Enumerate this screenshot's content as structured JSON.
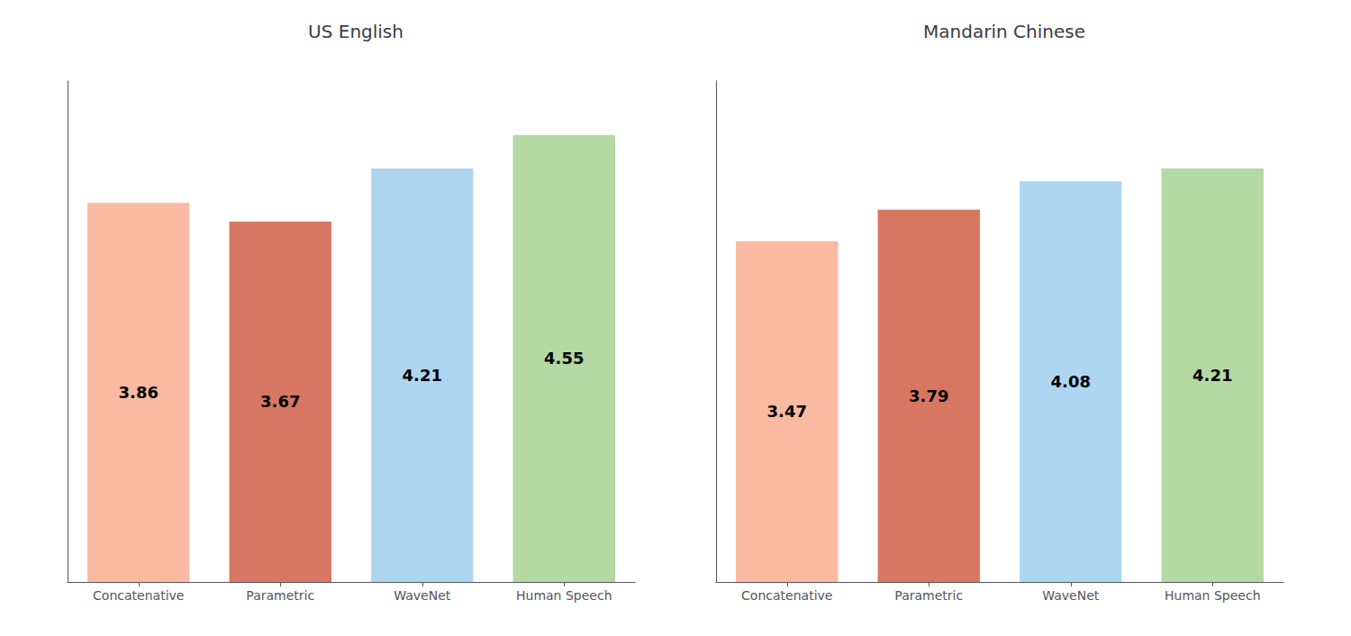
{
  "chart_data": [
    {
      "type": "bar",
      "title": "US English",
      "categories": [
        "Concatenative",
        "Parametric",
        "WaveNet",
        "Human Speech"
      ],
      "values": [
        3.86,
        3.67,
        4.21,
        4.55
      ],
      "colors": [
        "#FABAA2",
        "#D87761",
        "#AED6F1",
        "#B5D9A3"
      ],
      "ylim": [
        0.0,
        5.1
      ],
      "grid": false,
      "data_labels": true,
      "tick_labels": "x"
    },
    {
      "type": "bar",
      "title": "Mandarin Chinese",
      "categories": [
        "Concatenative",
        "Parametric",
        "WaveNet",
        "Human Speech"
      ],
      "values": [
        3.47,
        3.79,
        4.08,
        4.21
      ],
      "colors": [
        "#FABAA2",
        "#D87761",
        "#AED6F1",
        "#B5D9A3"
      ],
      "ylim": [
        0.0,
        5.1
      ],
      "grid": false,
      "data_labels": true,
      "tick_labels": "x"
    }
  ]
}
